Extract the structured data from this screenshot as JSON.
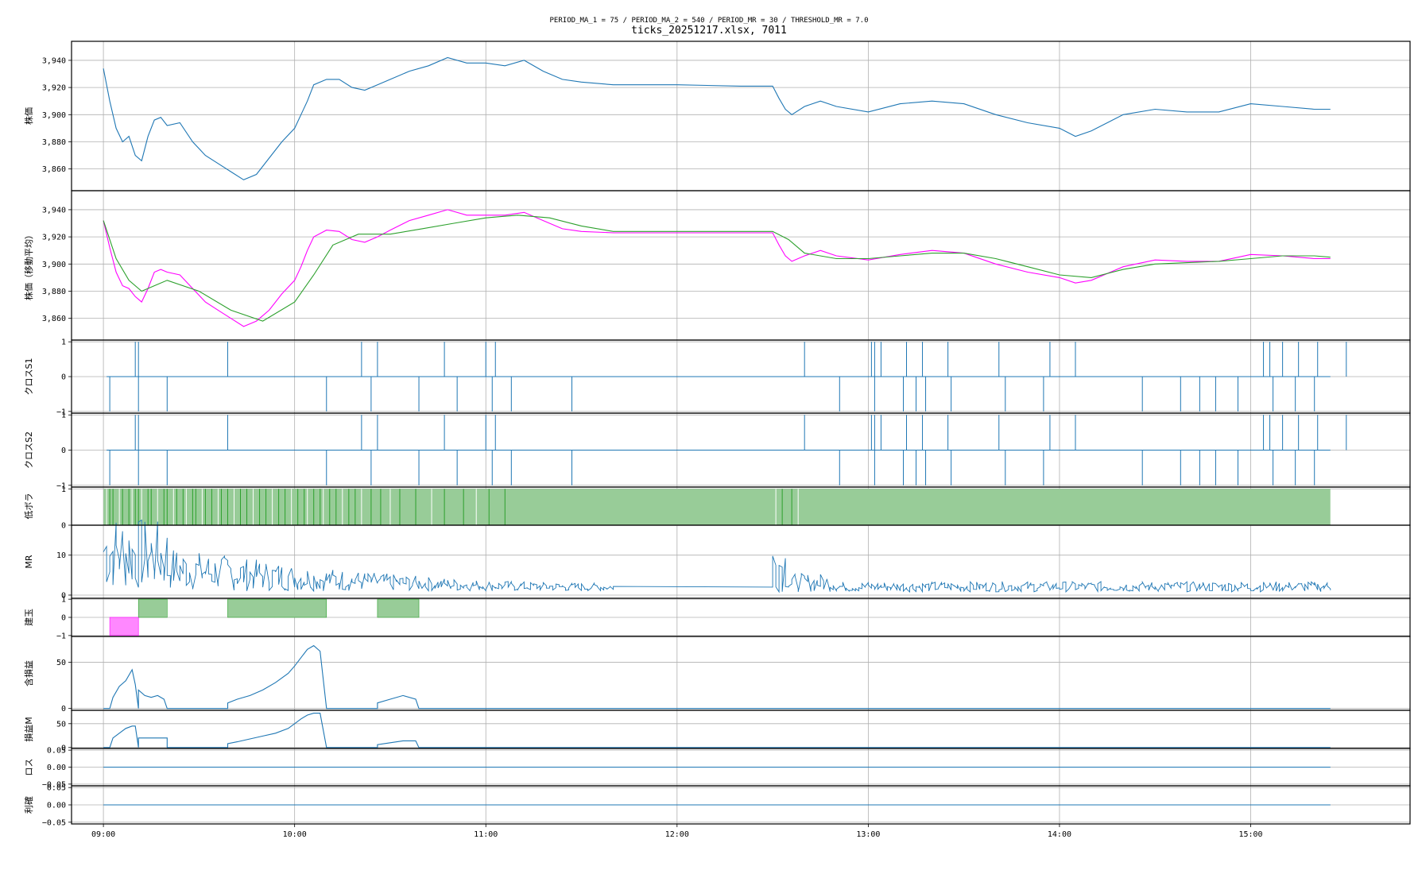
{
  "figure": {
    "suptitle": "PERIOD_MA_1 = 75 / PERIOD_MA_2 = 540 / PERIOD_MR = 30 / THRESHOLD_MR = 7.0",
    "title": "ticks_20251217.xlsx, 7011"
  },
  "colors": {
    "price": "#1f77b4",
    "ma1": "#ff00ff",
    "ma2": "#2ca02c",
    "lowvol_fill": "#98cc98",
    "pos_long": "#98cc98",
    "pos_short": "#ff88ff",
    "grid": "#b0b0b0"
  },
  "chart_data": {
    "type": "line",
    "x_axis": {
      "ticks": [
        "09:00",
        "10:00",
        "11:00",
        "12:00",
        "13:00",
        "14:00",
        "15:00"
      ],
      "range": [
        "08:50",
        "15:50"
      ]
    },
    "panels": [
      {
        "id": "price",
        "ylabel": "株価",
        "ylim": [
          3844,
          3954
        ],
        "yticks": [
          "3,860",
          "3,880",
          "3,900",
          "3,920",
          "3,940"
        ],
        "series": [
          {
            "style": "price",
            "x": [
              "09:00",
              "09:02",
              "09:04",
              "09:06",
              "09:08",
              "09:10",
              "09:12",
              "09:14",
              "09:16",
              "09:18",
              "09:20",
              "09:24",
              "09:28",
              "09:32",
              "09:36",
              "09:40",
              "09:44",
              "09:48",
              "09:52",
              "09:56",
              "10:00",
              "10:02",
              "10:04",
              "10:06",
              "10:10",
              "10:14",
              "10:18",
              "10:22",
              "10:26",
              "10:30",
              "10:36",
              "10:42",
              "10:48",
              "10:54",
              "11:00",
              "11:06",
              "11:12",
              "11:18",
              "11:24",
              "11:30",
              "11:40",
              "12:00",
              "12:20",
              "12:30",
              "12:32",
              "12:34",
              "12:36",
              "12:40",
              "12:45",
              "12:50",
              "13:00",
              "13:10",
              "13:20",
              "13:30",
              "13:40",
              "13:50",
              "14:00",
              "14:05",
              "14:10",
              "14:20",
              "14:30",
              "14:40",
              "14:50",
              "15:00",
              "15:10",
              "15:20",
              "15:25"
            ],
            "y": [
              3934,
              3910,
              3890,
              3880,
              3884,
              3870,
              3866,
              3884,
              3896,
              3898,
              3892,
              3894,
              3880,
              3870,
              3864,
              3858,
              3852,
              3856,
              3868,
              3880,
              3890,
              3900,
              3910,
              3922,
              3926,
              3926,
              3920,
              3918,
              3922,
              3926,
              3932,
              3936,
              3942,
              3938,
              3938,
              3936,
              3940,
              3932,
              3926,
              3924,
              3922,
              3922,
              3921,
              3921,
              3912,
              3904,
              3900,
              3906,
              3910,
              3906,
              3902,
              3908,
              3910,
              3908,
              3900,
              3894,
              3890,
              3884,
              3888,
              3900,
              3904,
              3902,
              3902,
              3908,
              3906,
              3904,
              3904
            ]
          }
        ]
      },
      {
        "id": "ma",
        "ylabel": "株価（移動平均）",
        "ylim": [
          3844,
          3954
        ],
        "yticks": [
          "3,860",
          "3,880",
          "3,900",
          "3,920",
          "3,940"
        ],
        "series": [
          {
            "style": "ma1",
            "x": [
              "09:00",
              "09:02",
              "09:04",
              "09:06",
              "09:08",
              "09:10",
              "09:12",
              "09:14",
              "09:16",
              "09:18",
              "09:20",
              "09:24",
              "09:28",
              "09:32",
              "09:36",
              "09:40",
              "09:44",
              "09:48",
              "09:52",
              "09:56",
              "10:00",
              "10:02",
              "10:04",
              "10:06",
              "10:10",
              "10:14",
              "10:18",
              "10:22",
              "10:26",
              "10:30",
              "10:36",
              "10:42",
              "10:48",
              "10:54",
              "11:00",
              "11:06",
              "11:12",
              "11:18",
              "11:24",
              "11:30",
              "11:40",
              "12:00",
              "12:20",
              "12:30",
              "12:32",
              "12:34",
              "12:36",
              "12:40",
              "12:45",
              "12:50",
              "13:00",
              "13:10",
              "13:20",
              "13:30",
              "13:40",
              "13:50",
              "14:00",
              "14:05",
              "14:10",
              "14:20",
              "14:30",
              "14:40",
              "14:50",
              "15:00",
              "15:10",
              "15:20",
              "15:25"
            ],
            "y": [
              3932,
              3912,
              3894,
              3884,
              3882,
              3876,
              3872,
              3882,
              3894,
              3896,
              3894,
              3892,
              3882,
              3872,
              3866,
              3860,
              3854,
              3858,
              3866,
              3878,
              3888,
              3898,
              3910,
              3920,
              3925,
              3924,
              3918,
              3916,
              3920,
              3925,
              3932,
              3936,
              3940,
              3936,
              3936,
              3936,
              3938,
              3932,
              3926,
              3924,
              3923,
              3923,
              3923,
              3923,
              3914,
              3906,
              3902,
              3906,
              3910,
              3906,
              3903,
              3907,
              3910,
              3908,
              3900,
              3894,
              3890,
              3886,
              3888,
              3898,
              3903,
              3902,
              3902,
              3907,
              3906,
              3904,
              3904
            ]
          },
          {
            "style": "ma2",
            "x": [
              "09:00",
              "09:04",
              "09:08",
              "09:12",
              "09:16",
              "09:20",
              "09:30",
              "09:40",
              "09:50",
              "10:00",
              "10:06",
              "10:12",
              "10:20",
              "10:30",
              "10:40",
              "10:50",
              "11:00",
              "11:10",
              "11:20",
              "11:30",
              "11:40",
              "12:00",
              "12:20",
              "12:30",
              "12:35",
              "12:40",
              "12:50",
              "13:00",
              "13:10",
              "13:20",
              "13:30",
              "13:40",
              "13:50",
              "14:00",
              "14:10",
              "14:20",
              "14:30",
              "14:40",
              "14:50",
              "15:00",
              "15:10",
              "15:20",
              "15:25"
            ],
            "y": [
              3932,
              3904,
              3888,
              3880,
              3884,
              3888,
              3880,
              3866,
              3858,
              3872,
              3892,
              3914,
              3922,
              3922,
              3926,
              3930,
              3934,
              3936,
              3934,
              3928,
              3924,
              3924,
              3924,
              3924,
              3918,
              3908,
              3904,
              3904,
              3906,
              3908,
              3908,
              3904,
              3898,
              3892,
              3890,
              3896,
              3900,
              3901,
              3902,
              3904,
              3906,
              3906,
              3905
            ]
          }
        ]
      },
      {
        "id": "cross1",
        "ylabel": "クロスS1",
        "ylim": [
          -1.05,
          1.05
        ],
        "yticks": [
          "−1",
          "0",
          "1"
        ],
        "baseline_range": [
          "09:01",
          "15:25"
        ],
        "up_spikes": [
          "09:10",
          "09:11",
          "09:39",
          "10:21",
          "10:26",
          "10:47",
          "11:00",
          "11:03",
          "12:40",
          "13:01",
          "13:02",
          "13:04",
          "13:12",
          "13:17",
          "13:25",
          "13:41",
          "13:57",
          "14:05",
          "15:04",
          "15:06",
          "15:10",
          "15:15",
          "15:21",
          "15:30"
        ],
        "down_spikes": [
          "09:02",
          "09:11",
          "09:20",
          "10:10",
          "10:24",
          "10:39",
          "10:51",
          "11:02",
          "11:08",
          "11:27",
          "12:51",
          "13:02",
          "13:11",
          "13:15",
          "13:18",
          "13:26",
          "13:43",
          "13:55",
          "14:26",
          "14:38",
          "14:44",
          "14:49",
          "14:56",
          "15:07",
          "15:14",
          "15:20"
        ]
      },
      {
        "id": "cross2",
        "ylabel": "クロスS2",
        "ylim": [
          -1.05,
          1.05
        ],
        "yticks": [
          "−1",
          "0",
          "1"
        ],
        "baseline_range": [
          "09:01",
          "15:25"
        ],
        "up_spikes": [
          "09:10",
          "09:11",
          "09:39",
          "10:21",
          "10:26",
          "10:47",
          "11:00",
          "11:03",
          "12:40",
          "13:01",
          "13:02",
          "13:04",
          "13:12",
          "13:17",
          "13:25",
          "13:41",
          "13:57",
          "14:05",
          "15:04",
          "15:06",
          "15:10",
          "15:15",
          "15:21",
          "15:30"
        ],
        "down_spikes": [
          "09:02",
          "09:11",
          "09:20",
          "10:10",
          "10:24",
          "10:39",
          "10:51",
          "11:02",
          "11:08",
          "11:27",
          "12:51",
          "13:02",
          "13:11",
          "13:15",
          "13:18",
          "13:26",
          "13:43",
          "13:55",
          "14:26",
          "14:38",
          "14:44",
          "14:49",
          "14:56",
          "15:07",
          "15:14",
          "15:20"
        ]
      },
      {
        "id": "lowvol",
        "ylabel": "低ボラ",
        "ylim": [
          0,
          1.05
        ],
        "yticks": [
          "0",
          "1"
        ],
        "fill_range": [
          "09:00",
          "15:25"
        ],
        "gap_times": [
          "09:01",
          "09:02",
          "09:03",
          "09:05",
          "09:06",
          "09:08",
          "09:09",
          "09:10",
          "09:11",
          "09:12",
          "09:14",
          "09:15",
          "09:17",
          "09:19",
          "09:20",
          "09:22",
          "09:23",
          "09:25",
          "09:26",
          "09:28",
          "09:29",
          "09:31",
          "09:32",
          "09:34",
          "09:36",
          "09:37",
          "09:39",
          "09:41",
          "09:43",
          "09:45",
          "09:47",
          "09:49",
          "09:51",
          "09:53",
          "09:55",
          "09:57",
          "09:59",
          "10:01",
          "10:03",
          "10:04",
          "10:06",
          "10:08",
          "10:09",
          "10:11",
          "10:13",
          "10:15",
          "10:17",
          "10:19",
          "10:21",
          "10:24",
          "10:27",
          "10:30",
          "10:33",
          "10:38",
          "10:43",
          "10:47",
          "10:53",
          "10:57",
          "11:01",
          "11:06",
          "12:31",
          "12:33",
          "12:36",
          "12:38"
        ]
      },
      {
        "id": "mr",
        "ylabel": "MR",
        "ylim": [
          -0.8,
          17.5
        ],
        "yticks": [
          "0",
          "10"
        ]
      },
      {
        "id": "position",
        "ylabel": "建玉",
        "ylim": [
          -1.05,
          1.05
        ],
        "yticks": [
          "−1",
          "0",
          "1"
        ],
        "blocks": [
          {
            "start": "09:02",
            "end": "09:11",
            "value": -1,
            "style": "pos_short"
          },
          {
            "start": "09:11",
            "end": "09:20",
            "value": 1,
            "style": "pos_long"
          },
          {
            "start": "09:39",
            "end": "10:10",
            "value": 1,
            "style": "pos_long"
          },
          {
            "start": "10:26",
            "end": "10:39",
            "value": 1,
            "style": "pos_long"
          }
        ]
      },
      {
        "id": "pnl",
        "ylabel": "含損益",
        "ylim": [
          -2,
          78
        ],
        "yticks": [
          "0",
          "50"
        ],
        "series": [
          {
            "style": "price",
            "x": [
              "09:00",
              "09:02",
              "09:03",
              "09:05",
              "09:07",
              "09:09",
              "09:10",
              "09:11",
              "09:11",
              "09:13",
              "09:15",
              "09:17",
              "09:19",
              "09:20",
              "09:20",
              "09:39",
              "09:39",
              "09:42",
              "09:46",
              "09:50",
              "09:54",
              "09:58",
              "10:00",
              "10:02",
              "10:04",
              "10:06",
              "10:08",
              "10:10",
              "10:10",
              "10:26",
              "10:26",
              "10:30",
              "10:34",
              "10:38",
              "10:39",
              "10:39",
              "15:25"
            ],
            "y": [
              0,
              0,
              12,
              24,
              30,
              42,
              26,
              0,
              20,
              14,
              12,
              14,
              10,
              0,
              0,
              0,
              6,
              10,
              14,
              20,
              28,
              38,
              46,
              55,
              64,
              68,
              62,
              0,
              0,
              0,
              6,
              10,
              14,
              10,
              0,
              0,
              0
            ]
          }
        ]
      },
      {
        "id": "pnl_max",
        "ylabel": "損益M",
        "ylim": [
          -2,
          78
        ],
        "yticks": [
          "0",
          "50"
        ],
        "series": [
          {
            "style": "price",
            "x": [
              "09:00",
              "09:02",
              "09:03",
              "09:05",
              "09:07",
              "09:09",
              "09:10",
              "09:11",
              "09:11",
              "09:20",
              "09:20",
              "09:39",
              "09:39",
              "09:42",
              "09:46",
              "09:50",
              "09:54",
              "09:58",
              "10:00",
              "10:02",
              "10:04",
              "10:06",
              "10:08",
              "10:10",
              "10:10",
              "10:26",
              "10:26",
              "10:30",
              "10:34",
              "10:38",
              "10:39",
              "10:39",
              "15:25"
            ],
            "y": [
              0,
              0,
              20,
              30,
              40,
              45,
              45,
              0,
              20,
              20,
              0,
              0,
              8,
              12,
              18,
              24,
              30,
              40,
              50,
              60,
              68,
              72,
              72,
              0,
              0,
              0,
              6,
              10,
              14,
              14,
              0,
              0,
              0
            ]
          }
        ]
      },
      {
        "id": "loss",
        "ylabel": "ロス",
        "ylim": [
          -0.055,
          0.055
        ],
        "yticks": [
          "−0.05",
          "0.00",
          "0.05"
        ],
        "series": [
          {
            "style": "price",
            "x": [
              "09:00",
              "15:25"
            ],
            "y": [
              0,
              0
            ]
          }
        ]
      },
      {
        "id": "profit",
        "ylabel": "利確",
        "ylim": [
          -0.055,
          0.055
        ],
        "yticks": [
          "−0.05",
          "0.00",
          "0.05"
        ],
        "series": [
          {
            "style": "price",
            "x": [
              "09:00",
              "15:25"
            ],
            "y": [
              0,
              0
            ]
          }
        ]
      }
    ]
  }
}
